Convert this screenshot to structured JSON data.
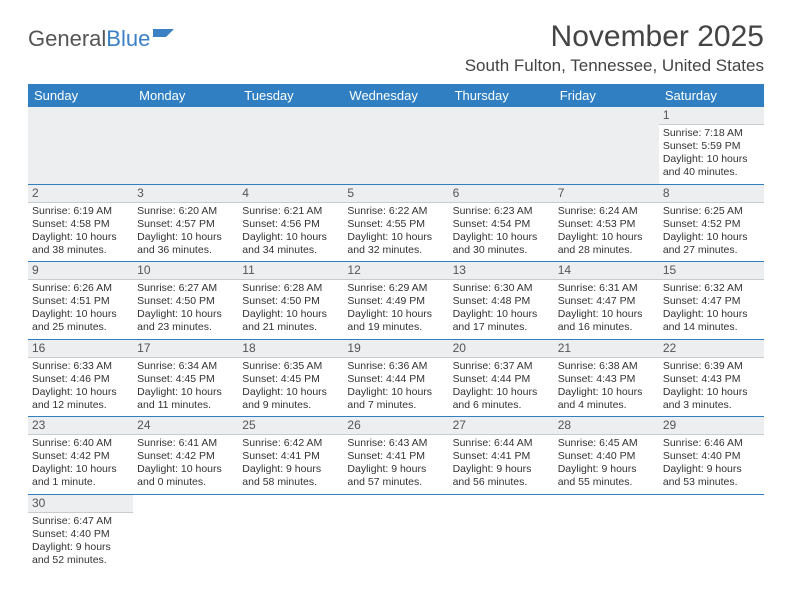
{
  "brand": {
    "part1": "General",
    "part2": "Blue"
  },
  "title": "November 2025",
  "location": "South Fulton, Tennessee, United States",
  "colors": {
    "header_bg": "#2f7fc2",
    "header_fg": "#ffffff",
    "rule": "#2f7fc2",
    "shade": "#eceeef"
  },
  "day_headers": [
    "Sunday",
    "Monday",
    "Tuesday",
    "Wednesday",
    "Thursday",
    "Friday",
    "Saturday"
  ],
  "weeks": [
    [
      null,
      null,
      null,
      null,
      null,
      null,
      {
        "n": "1",
        "sr": "Sunrise: 7:18 AM",
        "ss": "Sunset: 5:59 PM",
        "dl": "Daylight: 10 hours and 40 minutes."
      }
    ],
    [
      {
        "n": "2",
        "sr": "Sunrise: 6:19 AM",
        "ss": "Sunset: 4:58 PM",
        "dl": "Daylight: 10 hours and 38 minutes."
      },
      {
        "n": "3",
        "sr": "Sunrise: 6:20 AM",
        "ss": "Sunset: 4:57 PM",
        "dl": "Daylight: 10 hours and 36 minutes."
      },
      {
        "n": "4",
        "sr": "Sunrise: 6:21 AM",
        "ss": "Sunset: 4:56 PM",
        "dl": "Daylight: 10 hours and 34 minutes."
      },
      {
        "n": "5",
        "sr": "Sunrise: 6:22 AM",
        "ss": "Sunset: 4:55 PM",
        "dl": "Daylight: 10 hours and 32 minutes."
      },
      {
        "n": "6",
        "sr": "Sunrise: 6:23 AM",
        "ss": "Sunset: 4:54 PM",
        "dl": "Daylight: 10 hours and 30 minutes."
      },
      {
        "n": "7",
        "sr": "Sunrise: 6:24 AM",
        "ss": "Sunset: 4:53 PM",
        "dl": "Daylight: 10 hours and 28 minutes."
      },
      {
        "n": "8",
        "sr": "Sunrise: 6:25 AM",
        "ss": "Sunset: 4:52 PM",
        "dl": "Daylight: 10 hours and 27 minutes."
      }
    ],
    [
      {
        "n": "9",
        "sr": "Sunrise: 6:26 AM",
        "ss": "Sunset: 4:51 PM",
        "dl": "Daylight: 10 hours and 25 minutes."
      },
      {
        "n": "10",
        "sr": "Sunrise: 6:27 AM",
        "ss": "Sunset: 4:50 PM",
        "dl": "Daylight: 10 hours and 23 minutes."
      },
      {
        "n": "11",
        "sr": "Sunrise: 6:28 AM",
        "ss": "Sunset: 4:50 PM",
        "dl": "Daylight: 10 hours and 21 minutes."
      },
      {
        "n": "12",
        "sr": "Sunrise: 6:29 AM",
        "ss": "Sunset: 4:49 PM",
        "dl": "Daylight: 10 hours and 19 minutes."
      },
      {
        "n": "13",
        "sr": "Sunrise: 6:30 AM",
        "ss": "Sunset: 4:48 PM",
        "dl": "Daylight: 10 hours and 17 minutes."
      },
      {
        "n": "14",
        "sr": "Sunrise: 6:31 AM",
        "ss": "Sunset: 4:47 PM",
        "dl": "Daylight: 10 hours and 16 minutes."
      },
      {
        "n": "15",
        "sr": "Sunrise: 6:32 AM",
        "ss": "Sunset: 4:47 PM",
        "dl": "Daylight: 10 hours and 14 minutes."
      }
    ],
    [
      {
        "n": "16",
        "sr": "Sunrise: 6:33 AM",
        "ss": "Sunset: 4:46 PM",
        "dl": "Daylight: 10 hours and 12 minutes."
      },
      {
        "n": "17",
        "sr": "Sunrise: 6:34 AM",
        "ss": "Sunset: 4:45 PM",
        "dl": "Daylight: 10 hours and 11 minutes."
      },
      {
        "n": "18",
        "sr": "Sunrise: 6:35 AM",
        "ss": "Sunset: 4:45 PM",
        "dl": "Daylight: 10 hours and 9 minutes."
      },
      {
        "n": "19",
        "sr": "Sunrise: 6:36 AM",
        "ss": "Sunset: 4:44 PM",
        "dl": "Daylight: 10 hours and 7 minutes."
      },
      {
        "n": "20",
        "sr": "Sunrise: 6:37 AM",
        "ss": "Sunset: 4:44 PM",
        "dl": "Daylight: 10 hours and 6 minutes."
      },
      {
        "n": "21",
        "sr": "Sunrise: 6:38 AM",
        "ss": "Sunset: 4:43 PM",
        "dl": "Daylight: 10 hours and 4 minutes."
      },
      {
        "n": "22",
        "sr": "Sunrise: 6:39 AM",
        "ss": "Sunset: 4:43 PM",
        "dl": "Daylight: 10 hours and 3 minutes."
      }
    ],
    [
      {
        "n": "23",
        "sr": "Sunrise: 6:40 AM",
        "ss": "Sunset: 4:42 PM",
        "dl": "Daylight: 10 hours and 1 minute."
      },
      {
        "n": "24",
        "sr": "Sunrise: 6:41 AM",
        "ss": "Sunset: 4:42 PM",
        "dl": "Daylight: 10 hours and 0 minutes."
      },
      {
        "n": "25",
        "sr": "Sunrise: 6:42 AM",
        "ss": "Sunset: 4:41 PM",
        "dl": "Daylight: 9 hours and 58 minutes."
      },
      {
        "n": "26",
        "sr": "Sunrise: 6:43 AM",
        "ss": "Sunset: 4:41 PM",
        "dl": "Daylight: 9 hours and 57 minutes."
      },
      {
        "n": "27",
        "sr": "Sunrise: 6:44 AM",
        "ss": "Sunset: 4:41 PM",
        "dl": "Daylight: 9 hours and 56 minutes."
      },
      {
        "n": "28",
        "sr": "Sunrise: 6:45 AM",
        "ss": "Sunset: 4:40 PM",
        "dl": "Daylight: 9 hours and 55 minutes."
      },
      {
        "n": "29",
        "sr": "Sunrise: 6:46 AM",
        "ss": "Sunset: 4:40 PM",
        "dl": "Daylight: 9 hours and 53 minutes."
      }
    ],
    [
      {
        "n": "30",
        "sr": "Sunrise: 6:47 AM",
        "ss": "Sunset: 4:40 PM",
        "dl": "Daylight: 9 hours and 52 minutes."
      },
      null,
      null,
      null,
      null,
      null,
      null
    ]
  ]
}
